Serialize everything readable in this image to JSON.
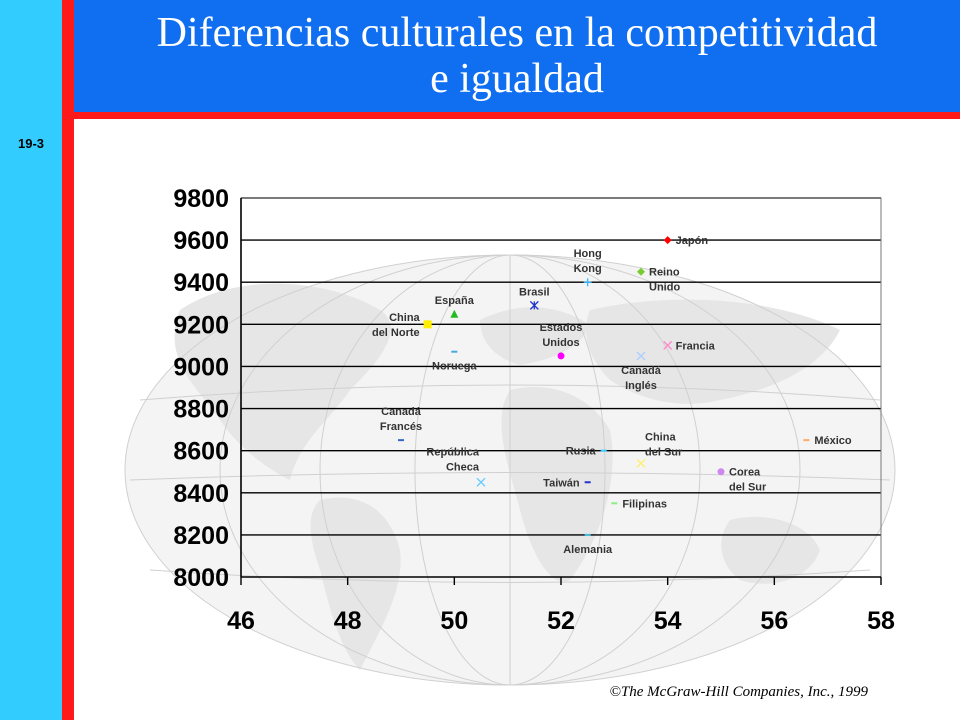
{
  "slide": {
    "title_line1": "Diferencias culturales en la competitividad",
    "title_line2": "e igualdad",
    "slide_number": "19-3",
    "copyright": "©The McGraw-Hill Companies, Inc., 1999"
  },
  "colors": {
    "left_bar": "#33ccff",
    "accent_red": "#ff1a1a",
    "header_blue": "#0f6ff0"
  },
  "chart_data": {
    "type": "scatter",
    "title": "",
    "xlabel": "",
    "ylabel": "",
    "xlim": [
      46,
      58
    ],
    "ylim": [
      8000,
      9800
    ],
    "x_ticks": [
      46,
      48,
      50,
      52,
      54,
      56,
      58
    ],
    "y_ticks": [
      8000,
      8200,
      8400,
      8600,
      8800,
      9000,
      9200,
      9400,
      9600,
      9800
    ],
    "grid": "horizontal",
    "points": [
      {
        "label": [
          "Japón"
        ],
        "x": 54.0,
        "y": 9600,
        "color": "#ff0000",
        "marker": "diamond",
        "label_pos": "right"
      },
      {
        "label": [
          "Hong",
          "Kong"
        ],
        "x": 52.5,
        "y": 9400,
        "color": "#33bbff",
        "marker": "plus",
        "label_pos": "above"
      },
      {
        "label": [
          "Reino",
          "Unido"
        ],
        "x": 53.5,
        "y": 9450,
        "color": "#77cc33",
        "marker": "diamond",
        "label_pos": "right"
      },
      {
        "label": [
          "Brasil"
        ],
        "x": 51.5,
        "y": 9290,
        "color": "#2233cc",
        "marker": "star",
        "label_pos": "above"
      },
      {
        "label": [
          "España"
        ],
        "x": 50.0,
        "y": 9250,
        "color": "#22bb22",
        "marker": "triangle",
        "label_pos": "above"
      },
      {
        "label": [
          "China",
          "del Norte"
        ],
        "x": 49.5,
        "y": 9200,
        "color": "#ffee00",
        "marker": "square",
        "label_pos": "left"
      },
      {
        "label": [
          "Estados",
          "Unidos"
        ],
        "x": 52.0,
        "y": 9050,
        "color": "#ff00ff",
        "marker": "circle",
        "label_pos": "above"
      },
      {
        "label": [
          "Francia"
        ],
        "x": 54.0,
        "y": 9100,
        "color": "#ff88cc",
        "marker": "x",
        "label_pos": "right"
      },
      {
        "label": [
          "Noruega"
        ],
        "x": 50.0,
        "y": 9070,
        "color": "#44aadd",
        "marker": "dash",
        "label_pos": "below"
      },
      {
        "label": [
          "Canadá",
          "Inglés"
        ],
        "x": 53.5,
        "y": 9050,
        "color": "#aaccff",
        "marker": "x",
        "label_pos": "below"
      },
      {
        "label": [
          "Canadá",
          "Francés"
        ],
        "x": 49.0,
        "y": 8650,
        "color": "#3366cc",
        "marker": "dash",
        "label_pos": "above"
      },
      {
        "label": [
          "México"
        ],
        "x": 56.6,
        "y": 8650,
        "color": "#ffaa66",
        "marker": "dash",
        "label_pos": "right"
      },
      {
        "label": [
          "Rusia"
        ],
        "x": 52.8,
        "y": 8600,
        "color": "#33ccff",
        "marker": "dash",
        "label_pos": "left"
      },
      {
        "label": [
          "China",
          "del Sur"
        ],
        "x": 53.5,
        "y": 8540,
        "color": "#ffee66",
        "marker": "x",
        "label_pos": "above-right"
      },
      {
        "label": [
          "Corea",
          "del Sur"
        ],
        "x": 55.0,
        "y": 8500,
        "color": "#cc88ee",
        "marker": "circle",
        "label_pos": "right"
      },
      {
        "label": [
          "República",
          "Checa"
        ],
        "x": 50.5,
        "y": 8450,
        "color": "#66ccff",
        "marker": "x",
        "label_pos": "above-left"
      },
      {
        "label": [
          "Taiwán"
        ],
        "x": 52.5,
        "y": 8450,
        "color": "#2233cc",
        "marker": "dash",
        "label_pos": "left"
      },
      {
        "label": [
          "Filipinas"
        ],
        "x": 53.0,
        "y": 8350,
        "color": "#88ee88",
        "marker": "dash",
        "label_pos": "right"
      },
      {
        "label": [
          "Alemania"
        ],
        "x": 52.5,
        "y": 8200,
        "color": "#44bbdd",
        "marker": "dash",
        "label_pos": "below"
      }
    ]
  }
}
